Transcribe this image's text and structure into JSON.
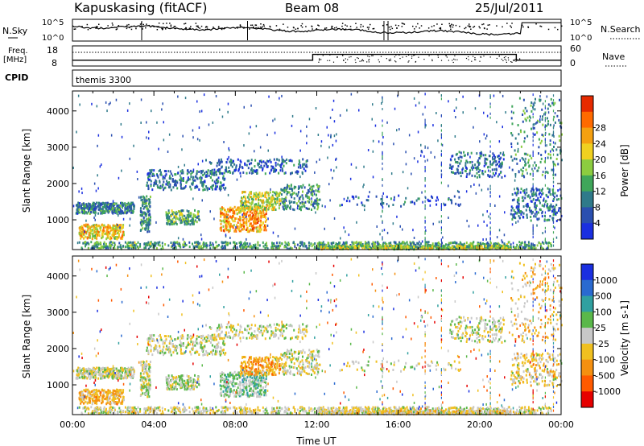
{
  "header": {
    "station": "Kapuskasing (fitACF)",
    "beam": "Beam 08",
    "date": "25/Jul/2011"
  },
  "housekeeping": {
    "nsky_label": "N.Sky",
    "nsearch_label": "N.Search",
    "nsky_ticks": [
      "10^5",
      "10^0"
    ],
    "nsearch_ticks": [
      "10^5",
      "10^0"
    ],
    "freq_label": "Freq.",
    "freq_unit": "[MHz]",
    "freq_ticks": [
      "18",
      "8"
    ],
    "nave_label": "Nave",
    "nave_ticks": [
      "60",
      "0"
    ],
    "cpid_label": "CPID",
    "cpid_value": "themis 3300"
  },
  "chart_data": [
    {
      "type": "heatmap",
      "title": "",
      "quantity": "Power",
      "xlabel": "",
      "ylabel": "Slant Range [km]",
      "ylim": [
        180,
        4550
      ],
      "yticks": [
        "1000",
        "2000",
        "3000",
        "4000"
      ],
      "xlim_hours": [
        0,
        24
      ],
      "colorbar_label": "Power [dB]",
      "colorbar_ticks": [
        "4",
        "8",
        "12",
        "16",
        "20",
        "24",
        "28"
      ],
      "colorbar_colors": [
        "#1a2fe0",
        "#2a4fb0",
        "#2f7a8a",
        "#3fa65a",
        "#8ccc40",
        "#f0d020",
        "#f5a010",
        "#ff6a00",
        "#e62a00"
      ]
    },
    {
      "type": "heatmap",
      "title": "",
      "quantity": "Velocity",
      "xlabel": "Time UT",
      "ylabel": "Slant Range [km]",
      "ylim": [
        180,
        4550
      ],
      "yticks": [
        "1000",
        "2000",
        "3000",
        "4000"
      ],
      "xticks": [
        "00:00",
        "04:00",
        "08:00",
        "12:00",
        "16:00",
        "20:00",
        "00:00"
      ],
      "colorbar_label": "Velocity [m s-1]",
      "colorbar_ticks": [
        "1000",
        "500",
        "100",
        "25",
        "-25",
        "-100",
        "-500",
        "-1000"
      ],
      "colorbar_colors": [
        "#1a2fe0",
        "#2a6ad0",
        "#30a0a0",
        "#5ab84a",
        "#c8c8c8",
        "#f0c020",
        "#f59010",
        "#ff5a00",
        "#e60000"
      ]
    }
  ]
}
